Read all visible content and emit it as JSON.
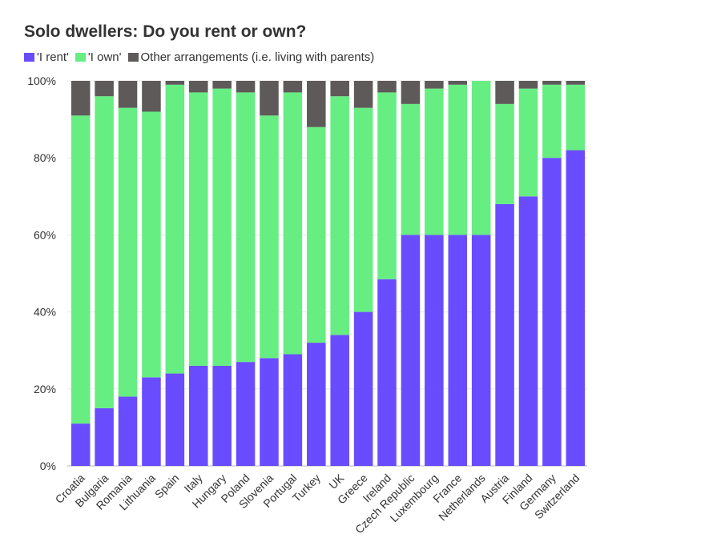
{
  "chart_data": {
    "type": "bar",
    "stacked": true,
    "title": "Solo dwellers: Do you rent or own?",
    "xlabel": "",
    "ylabel": "",
    "ylim": [
      0,
      100
    ],
    "ytick_labels": [
      "0%",
      "20%",
      "40%",
      "60%",
      "80%",
      "100%"
    ],
    "grid": true,
    "legend_position": "top-left",
    "categories": [
      "Croatia",
      "Bulgaria",
      "Romania",
      "Lithuania",
      "Spain",
      "Italy",
      "Hungary",
      "Poland",
      "Slovenia",
      "Portugal",
      "Turkey",
      "UK",
      "Greece",
      "Ireland",
      "Czech Republic",
      "Luxembourg",
      "France",
      "Netherlands",
      "Austria",
      "Finland",
      "Germany",
      "Switzerland"
    ],
    "series": [
      {
        "name": "'I rent'",
        "color": "#6a4cff",
        "values": [
          11,
          15,
          18,
          23,
          24,
          26,
          26,
          27,
          28,
          29,
          32,
          34,
          40,
          48.5,
          60,
          60,
          60,
          60,
          68,
          70,
          80,
          82
        ]
      },
      {
        "name": "'I own'",
        "color": "#66ee82",
        "values": [
          80,
          81,
          75,
          69,
          75,
          71,
          72,
          70,
          63,
          68,
          56,
          62,
          53,
          48.5,
          34,
          38,
          39,
          40,
          26,
          28,
          19,
          17
        ]
      },
      {
        "name": "Other arrangements (i.e. living with parents)",
        "color": "#5f5a5a",
        "values": [
          9,
          4,
          7,
          8,
          1,
          3,
          2,
          3,
          9,
          3,
          12,
          4,
          7,
          3,
          6,
          2,
          1,
          0,
          6,
          2,
          1,
          1
        ]
      }
    ]
  }
}
